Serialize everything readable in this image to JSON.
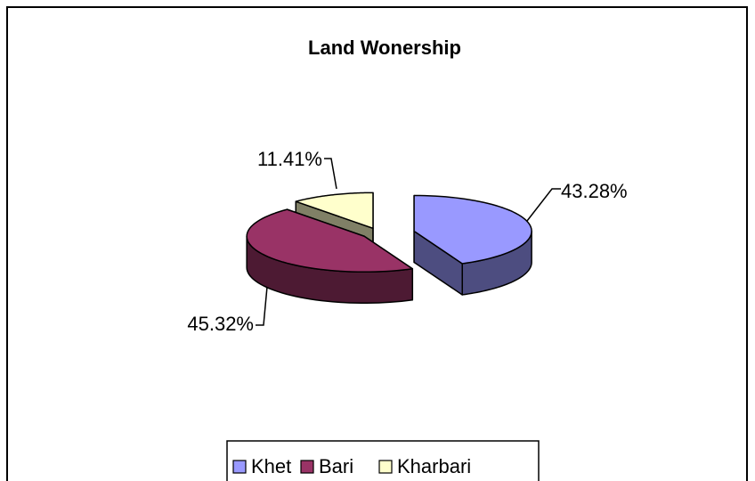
{
  "chart_data": {
    "type": "pie3d",
    "title": "Land Wonership",
    "categories": [
      "Khet",
      "Bari",
      "Kharbari"
    ],
    "values": [
      43.28,
      45.32,
      11.41
    ],
    "value_labels": [
      "43.28%",
      "45.32%",
      "11.41%"
    ],
    "colors": [
      "#9999ff",
      "#993366",
      "#ffffcc"
    ],
    "legend": "bottom"
  }
}
